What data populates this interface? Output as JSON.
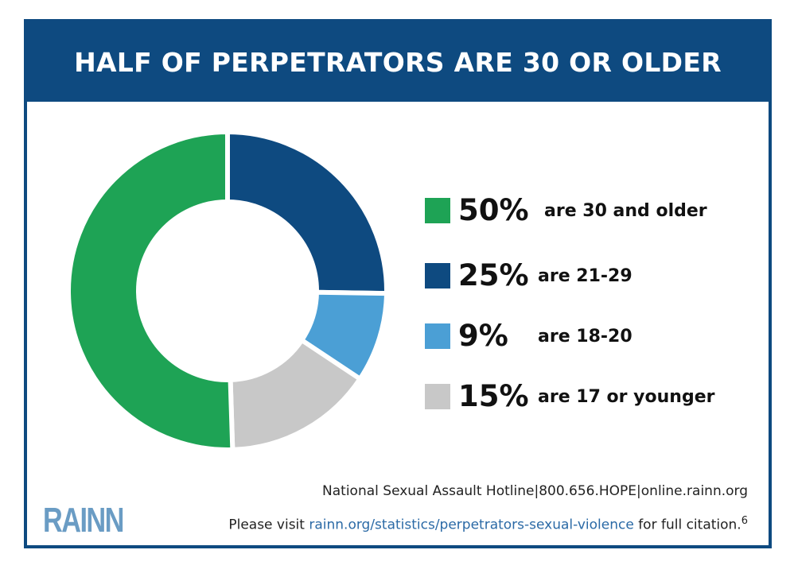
{
  "title": "HALF OF PERPETRATORS ARE 30 OR OLDER",
  "chart_data": {
    "type": "pie",
    "title": "HALF OF PERPETRATORS ARE 30 OR OLDER",
    "slices": [
      {
        "label": "are 30 and older",
        "pct_text": "50%",
        "value": 50,
        "color": "#1ea355"
      },
      {
        "label": "are 21-29",
        "pct_text": "25%",
        "value": 25,
        "color": "#0e4a80"
      },
      {
        "label": "are 18-20",
        "pct_text": "9%",
        "value": 9,
        "color": "#4b9fd5"
      },
      {
        "label": "are 17 or younger",
        "pct_text": "15%",
        "value": 15,
        "color": "#c8c8c8"
      }
    ],
    "legend_position": "right"
  },
  "footer": {
    "hotline": "National Sexual Assault Hotline|800.656.HOPE|online.rainn.org",
    "visit_prefix": "Please visit ",
    "visit_link": "rainn.org/statistics/perpetrators-sexual-violence",
    "visit_suffix": " for full citation.",
    "footnote": "6"
  },
  "logo": "RAINN"
}
